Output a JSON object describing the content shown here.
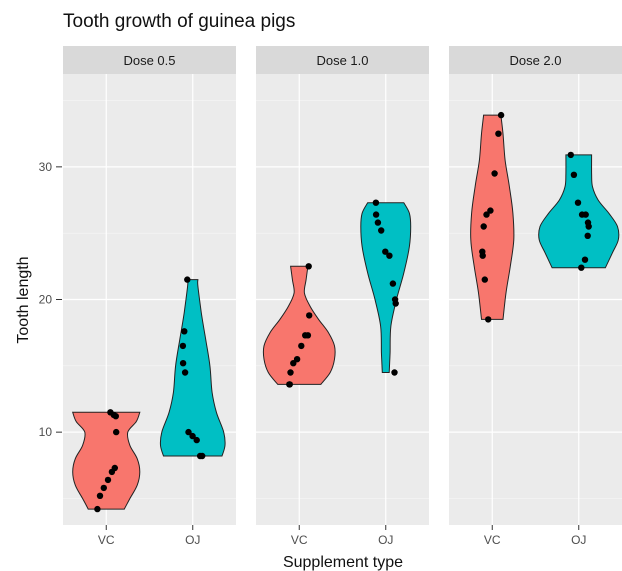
{
  "chart_data": {
    "type": "violin",
    "title": "Tooth growth of guinea pigs",
    "xlabel": "Supplement type",
    "ylabel": "Tooth length",
    "ylim": [
      3,
      37
    ],
    "yticks": [
      10,
      20,
      30
    ],
    "grid": true,
    "categories": [
      "VC",
      "OJ"
    ],
    "series_colors": {
      "VC": "#f8766d",
      "OJ": "#00bfc4"
    },
    "panels": [
      {
        "label": "Dose 0.5",
        "groups": [
          {
            "category": "VC",
            "points": [
              11.5,
              11.3,
              11.2,
              10.0,
              7.3,
              7.0,
              6.4,
              5.8,
              5.2,
              4.2
            ],
            "profile": [
              [
                4.2,
                0.42
              ],
              [
                5.0,
                0.55
              ],
              [
                6.0,
                0.72
              ],
              [
                7.0,
                0.78
              ],
              [
                8.0,
                0.72
              ],
              [
                9.0,
                0.55
              ],
              [
                10.0,
                0.5
              ],
              [
                10.8,
                0.7
              ],
              [
                11.5,
                0.78
              ]
            ]
          },
          {
            "category": "OJ",
            "points": [
              21.5,
              17.6,
              16.5,
              15.2,
              14.5,
              10.0,
              9.7,
              9.4,
              8.2,
              8.2
            ],
            "profile": [
              [
                8.2,
                0.68
              ],
              [
                9.0,
                0.75
              ],
              [
                10.0,
                0.72
              ],
              [
                11.5,
                0.55
              ],
              [
                13.0,
                0.45
              ],
              [
                15.0,
                0.4
              ],
              [
                17.0,
                0.3
              ],
              [
                19.0,
                0.2
              ],
              [
                21.0,
                0.12
              ],
              [
                21.5,
                0.12
              ]
            ]
          }
        ]
      },
      {
        "label": "Dose 1.0",
        "groups": [
          {
            "category": "VC",
            "points": [
              22.5,
              18.8,
              17.3,
              17.3,
              16.5,
              15.5,
              15.2,
              14.5,
              13.6,
              13.6
            ],
            "profile": [
              [
                13.6,
                0.5
              ],
              [
                14.5,
                0.72
              ],
              [
                15.5,
                0.82
              ],
              [
                16.5,
                0.82
              ],
              [
                17.5,
                0.68
              ],
              [
                18.5,
                0.45
              ],
              [
                19.5,
                0.25
              ],
              [
                20.5,
                0.12
              ],
              [
                21.5,
                0.16
              ],
              [
                22.5,
                0.2
              ]
            ]
          },
          {
            "category": "OJ",
            "points": [
              27.3,
              26.4,
              25.8,
              25.2,
              23.6,
              23.3,
              21.2,
              20.0,
              19.7,
              14.5
            ],
            "profile": [
              [
                14.5,
                0.08
              ],
              [
                16.0,
                0.1
              ],
              [
                18.0,
                0.12
              ],
              [
                20.0,
                0.25
              ],
              [
                22.0,
                0.42
              ],
              [
                24.0,
                0.55
              ],
              [
                25.5,
                0.58
              ],
              [
                26.5,
                0.55
              ],
              [
                27.3,
                0.42
              ]
            ]
          }
        ]
      },
      {
        "label": "Dose 2.0",
        "groups": [
          {
            "category": "VC",
            "points": [
              33.9,
              32.5,
              29.5,
              26.7,
              26.4,
              25.5,
              23.6,
              23.3,
              21.5,
              18.5
            ],
            "profile": [
              [
                18.5,
                0.25
              ],
              [
                20.5,
                0.32
              ],
              [
                22.5,
                0.42
              ],
              [
                24.5,
                0.5
              ],
              [
                26.5,
                0.48
              ],
              [
                28.5,
                0.4
              ],
              [
                30.5,
                0.3
              ],
              [
                32.5,
                0.25
              ],
              [
                33.9,
                0.2
              ]
            ]
          },
          {
            "category": "OJ",
            "points": [
              30.9,
              29.4,
              27.3,
              26.4,
              26.4,
              25.8,
              25.5,
              24.8,
              23.0,
              22.4
            ],
            "profile": [
              [
                22.4,
                0.62
              ],
              [
                23.5,
                0.78
              ],
              [
                24.5,
                0.92
              ],
              [
                25.5,
                0.9
              ],
              [
                26.5,
                0.7
              ],
              [
                27.5,
                0.45
              ],
              [
                28.5,
                0.32
              ],
              [
                29.5,
                0.3
              ],
              [
                30.9,
                0.3
              ]
            ]
          }
        ]
      }
    ]
  }
}
